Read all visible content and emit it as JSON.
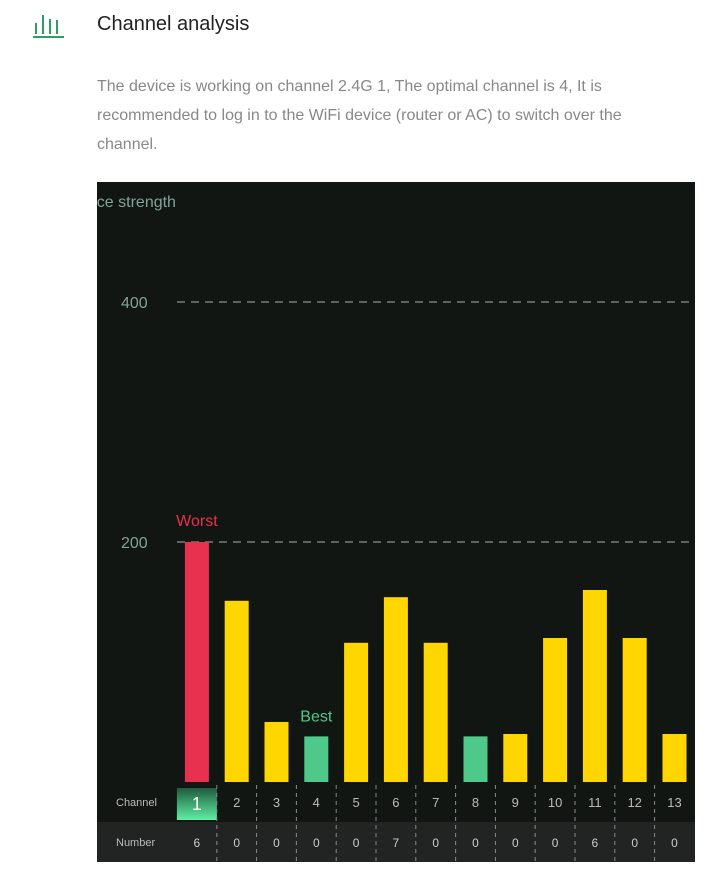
{
  "header": {
    "title": "Channel analysis",
    "icon": "bar-chart-icon",
    "accent": "#2e9e68"
  },
  "description": "The device is working on channel 2.4G 1, The optimal channel is 4, It is recommended to log in to the WiFi device (router or AC) to switch over the channel.",
  "chart_data": {
    "type": "bar",
    "ylabel": "ence strength",
    "ylim": [
      0,
      400
    ],
    "yticks": [
      200,
      400
    ],
    "grid": true,
    "categories": [
      "1",
      "2",
      "3",
      "4",
      "5",
      "6",
      "7",
      "8",
      "9",
      "10",
      "11",
      "12",
      "13"
    ],
    "values": [
      200,
      151,
      50,
      38,
      116,
      154,
      116,
      38,
      40,
      120,
      160,
      120,
      40
    ],
    "numbers": [
      "6",
      "0",
      "0",
      "0",
      "0",
      "7",
      "0",
      "0",
      "0",
      "0",
      "6",
      "0",
      "0"
    ],
    "row_labels": {
      "channel": "Channel",
      "number": "Number"
    },
    "annotations": {
      "worst": "Worst",
      "best": "Best"
    },
    "worst_index": 0,
    "best_indices": [
      3,
      7
    ],
    "current_channel_index": 0,
    "colors": {
      "worst": "#e8304f",
      "best": "#4fc98a",
      "normal": "#ffd600",
      "background": "#121613",
      "axis_text": "#7fa39a"
    }
  }
}
